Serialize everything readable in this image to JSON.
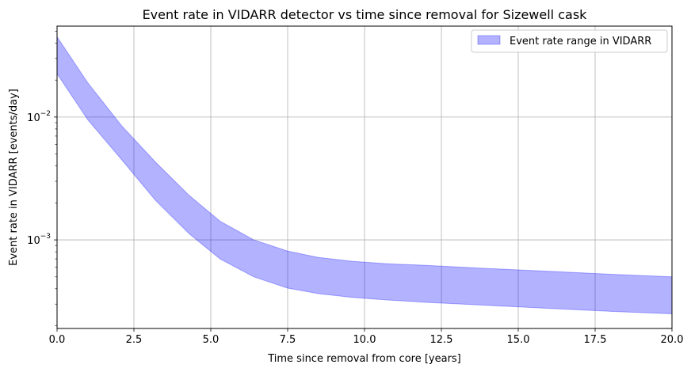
{
  "chart_data": {
    "type": "area",
    "title": "Event rate in VIDARR detector vs time since removal for Sizewell cask",
    "xlabel": "Time since removal from core [years]",
    "ylabel": "Event rate in VIDARR [events/day]",
    "xlim": [
      0,
      20
    ],
    "ylim": [
      0.00019,
      0.055
    ],
    "yscale": "log",
    "grid": true,
    "legend_position": "top-right",
    "x_ticks": [
      0,
      2.5,
      5,
      7.5,
      10,
      12.5,
      15,
      17.5,
      20
    ],
    "x_tick_labels": [
      "0.0",
      "2.5",
      "5.0",
      "7.5",
      "10.0",
      "12.5",
      "15.0",
      "17.5",
      "20.0"
    ],
    "y_ticks": [
      0.01,
      0.001
    ],
    "y_tick_labels": [
      {
        "base": "10",
        "exp": "−2"
      },
      {
        "base": "10",
        "exp": "−3"
      }
    ],
    "series": [
      {
        "name": "Event rate range in VIDARR",
        "color": "#0000ff",
        "fill_opacity": 0.3,
        "x": [
          0,
          1,
          2.1,
          3.2,
          4.3,
          5.3,
          6.4,
          7.5,
          8.5,
          9.6,
          10.7,
          12,
          14,
          16,
          18,
          20
        ],
        "lower": [
          0.0225,
          0.0095,
          0.0045,
          0.0021,
          0.00112,
          0.0007,
          0.0005,
          0.000405,
          0.000365,
          0.00034,
          0.000325,
          0.00031,
          0.000293,
          0.000277,
          0.000262,
          0.00025
        ],
        "upper": [
          0.045,
          0.019,
          0.0085,
          0.0043,
          0.0023,
          0.00142,
          0.001,
          0.00081,
          0.00072,
          0.00067,
          0.00064,
          0.00062,
          0.000585,
          0.000555,
          0.000525,
          0.0005
        ]
      }
    ]
  }
}
